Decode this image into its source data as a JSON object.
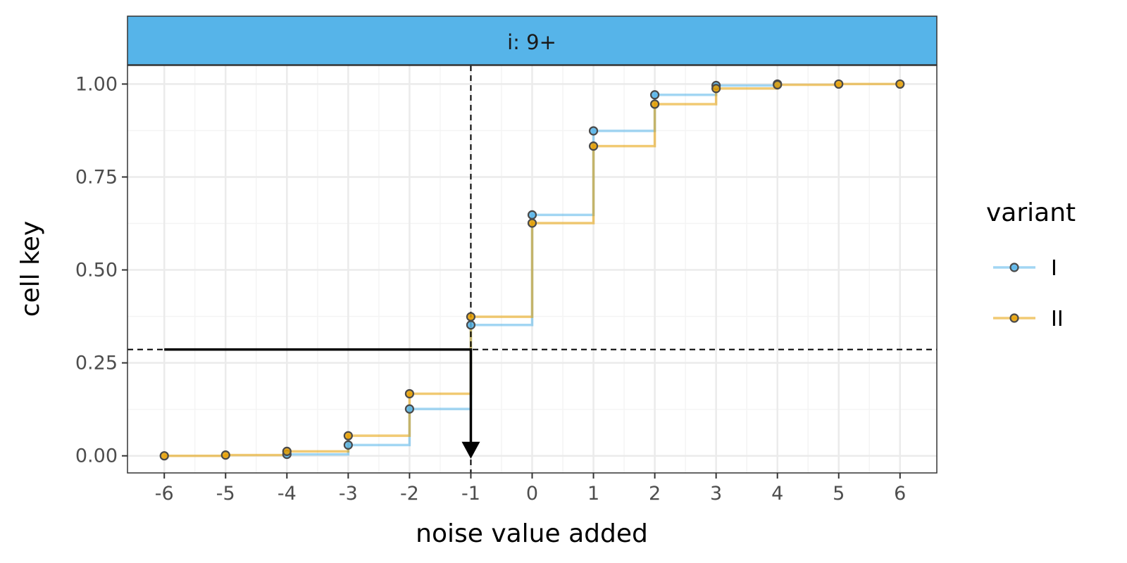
{
  "chart_data": {
    "type": "line",
    "step": true,
    "facet_label": "i: 9+",
    "xlabel": "noise value added",
    "ylabel": "cell key",
    "xlim": [
      -6.6,
      6.6
    ],
    "ylim": [
      -0.046,
      1.05
    ],
    "x_ticks": [
      "-6",
      "-5",
      "-4",
      "-3",
      "-2",
      "-1",
      "0",
      "1",
      "2",
      "3",
      "4",
      "5",
      "6"
    ],
    "x_tick_values": [
      -6,
      -5,
      -4,
      -3,
      -2,
      -1,
      0,
      1,
      2,
      3,
      4,
      5,
      6
    ],
    "y_ticks": [
      "0.00",
      "0.25",
      "0.50",
      "0.75",
      "1.00"
    ],
    "y_tick_values": [
      0,
      0.25,
      0.5,
      0.75,
      1.0
    ],
    "grid": true,
    "legend": {
      "title": "variant",
      "position": "right"
    },
    "series": [
      {
        "name": "I",
        "color": "#56B4E9",
        "x": [
          -4,
          -3,
          -2,
          -1,
          0,
          1,
          2,
          3,
          4
        ],
        "y": [
          0.004,
          0.029,
          0.126,
          0.352,
          0.648,
          0.874,
          0.971,
          0.996,
          1.0
        ]
      },
      {
        "name": "II",
        "color": "#E69F00",
        "x": [
          -6,
          -5,
          -4,
          -3,
          -2,
          -1,
          0,
          1,
          2,
          3,
          4,
          5,
          6
        ],
        "y": [
          0.0,
          0.002,
          0.012,
          0.054,
          0.167,
          0.374,
          0.626,
          0.833,
          0.946,
          0.988,
          0.998,
          1.0,
          1.0
        ]
      }
    ],
    "annotations": {
      "random_value": 0.286,
      "selected_noise": -1,
      "arrow_start_x": -6
    }
  },
  "colors": {
    "strip_fill": "#56B4E9",
    "panel_border": "#333333",
    "grid_major": "#ebebeb",
    "grid_minor": "#f4f4f4",
    "point_outline": "#4a4a4a",
    "annotation": "#000000"
  }
}
